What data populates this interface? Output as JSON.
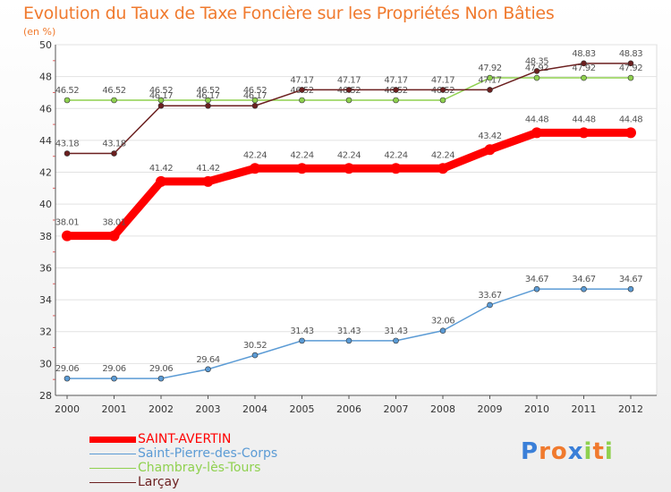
{
  "chart_data": {
    "type": "line",
    "title": "Evolution du Taux de Taxe Foncière sur les Propriétés Non Bâties",
    "ylabel": "(en %)",
    "xlabel": "",
    "categories": [
      "2000",
      "2001",
      "2002",
      "2003",
      "2004",
      "2005",
      "2006",
      "2007",
      "2008",
      "2009",
      "2010",
      "2011",
      "2012"
    ],
    "ylim": [
      28,
      50
    ],
    "yticks": [
      28,
      30,
      32,
      34,
      36,
      38,
      40,
      42,
      44,
      46,
      48,
      50
    ],
    "series": [
      {
        "name": "SAINT-AVERTIN",
        "color": "#ff0000",
        "values": [
          38.01,
          38.01,
          41.42,
          41.42,
          42.24,
          42.24,
          42.24,
          42.24,
          42.24,
          43.42,
          44.48,
          44.48,
          44.48
        ],
        "labels": [
          "38.01",
          "38.01",
          "41.42",
          "41.42",
          "42.24",
          "42.24",
          "42.24",
          "42.24",
          "42.24",
          "43.42",
          "44.48",
          "44.48",
          "44.48"
        ]
      },
      {
        "name": "Saint-Pierre-des-Corps",
        "color": "#5b9bd5",
        "values": [
          29.06,
          29.06,
          29.06,
          29.64,
          30.52,
          31.43,
          31.43,
          31.43,
          32.06,
          33.67,
          34.67,
          34.67,
          34.67
        ],
        "labels": [
          "29.06",
          "29.06",
          "29.06",
          "29.64",
          "30.52",
          "31.43",
          "31.43",
          "31.43",
          "32.06",
          "33.67",
          "34.67",
          "34.67",
          "34.67"
        ]
      },
      {
        "name": "Chambray-lès-Tours",
        "color": "#8fd14f",
        "values": [
          46.52,
          46.52,
          46.52,
          46.52,
          46.52,
          46.52,
          46.52,
          46.52,
          46.52,
          47.92,
          47.92,
          47.92,
          47.92
        ],
        "labels": [
          "46.52",
          "46.52",
          "46.52",
          "46.52",
          "46.52",
          "46.52",
          "46.52",
          "46.52",
          "46.52",
          "47.92",
          "47.92",
          "47.92",
          "47.92"
        ]
      },
      {
        "name": "Larçay",
        "color": "#6b1f1f",
        "values": [
          43.18,
          43.18,
          46.17,
          46.17,
          46.17,
          47.17,
          47.17,
          47.17,
          47.17,
          47.17,
          48.35,
          48.83,
          48.83
        ],
        "labels": [
          "43.18",
          "43.18",
          "46.17",
          "46.17",
          "46.17",
          "47.17",
          "47.17",
          "47.17",
          "47.17",
          "47.17",
          "48.35",
          "48.83",
          "48.83"
        ]
      }
    ],
    "legend_position": "bottom-left"
  },
  "legend": {
    "items": [
      {
        "label": "SAINT-AVERTIN",
        "color": "#ff0000"
      },
      {
        "label": "Saint-Pierre-des-Corps",
        "color": "#5b9bd5"
      },
      {
        "label": "Chambray-lès-Tours",
        "color": "#8fd14f"
      },
      {
        "label": "Larçay",
        "color": "#6b1f1f"
      }
    ]
  },
  "logo": {
    "text": "Proxiti",
    "letters": [
      "P",
      "r",
      "o",
      "x",
      "i",
      "t",
      "i"
    ],
    "colors": [
      "#3a7fd8",
      "#f07a2e",
      "#f07a2e",
      "#3a7fd8",
      "#8fd14f",
      "#f07a2e",
      "#8fd14f"
    ]
  }
}
